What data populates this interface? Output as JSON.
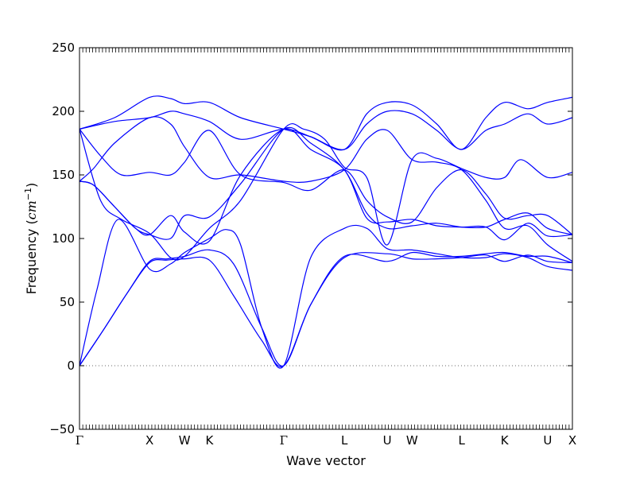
{
  "chart_data": {
    "type": "line",
    "title": "",
    "xlabel": "Wave vector",
    "ylabel_main": "Frequency (",
    "ylabel_unit": "cm",
    "ylabel_sup": "−1",
    "ylabel_close": ")",
    "ylim": [
      -50,
      250
    ],
    "yticks": [
      -50,
      0,
      50,
      100,
      150,
      200,
      250
    ],
    "ytick_labels": [
      "−50",
      "0",
      "50",
      "100",
      "150",
      "200",
      "250"
    ],
    "grid": false,
    "line_color": "#0000ff",
    "zero_line_color": "#6a6a6a",
    "kpoints": [
      {
        "label": "Γ",
        "x": 0.0
      },
      {
        "label": "X",
        "x": 1.0
      },
      {
        "label": "W",
        "x": 1.5
      },
      {
        "label": "K",
        "x": 1.854
      },
      {
        "label": "Γ",
        "x": 2.915
      },
      {
        "label": "L",
        "x": 3.781
      },
      {
        "label": "U",
        "x": 4.393
      },
      {
        "label": "W",
        "x": 4.747
      },
      {
        "label": "L",
        "x": 5.455
      },
      {
        "label": "K",
        "x": 6.068
      },
      {
        "label": "U",
        "x": 6.682
      },
      {
        "label": "X",
        "x": 7.036
      }
    ],
    "series": [
      {
        "x": [
          0.0,
          0.34,
          0.68,
          1.0,
          1.25,
          1.5,
          1.854,
          2.2,
          2.6,
          2.915,
          3.3,
          3.781,
          4.393,
          4.747,
          5.1,
          5.455,
          5.8,
          6.068,
          6.4,
          6.682,
          7.036
        ],
        "y": [
          0,
          28,
          57,
          81,
          83,
          84,
          83,
          55,
          20,
          0,
          48,
          85,
          88,
          84,
          84,
          85,
          87,
          82,
          87,
          82,
          81
        ]
      },
      {
        "x": [
          0.0,
          0.34,
          0.68,
          1.0,
          1.25,
          1.5,
          1.854,
          2.2,
          2.6,
          2.915,
          3.3,
          3.781,
          4.393,
          4.747,
          5.1,
          5.455,
          5.8,
          6.068,
          6.4,
          6.682,
          7.036
        ],
        "y": [
          0,
          28,
          57,
          82,
          84,
          86,
          91,
          80,
          30,
          0,
          48,
          86,
          82,
          89,
          86,
          86,
          88,
          89,
          86,
          86,
          81
        ]
      },
      {
        "x": [
          0.0,
          0.25,
          0.55,
          1.0,
          1.3,
          1.5,
          1.854,
          2.1,
          2.3,
          2.6,
          2.915,
          3.3,
          3.781,
          4.1,
          4.393,
          4.747,
          5.1,
          5.455,
          5.8,
          6.068,
          6.4,
          6.682,
          7.036
        ],
        "y": [
          0,
          60,
          115,
          76,
          80,
          89,
          100,
          107,
          95,
          30,
          0,
          85,
          108,
          108,
          92,
          91,
          88,
          85,
          85,
          88,
          85,
          78,
          75
        ]
      },
      {
        "x": [
          0.0,
          0.2,
          0.5,
          0.8,
          1.0,
          1.3,
          1.5,
          1.854,
          2.3,
          2.915,
          3.3,
          3.781,
          4.1,
          4.393,
          4.747,
          5.1,
          5.455,
          5.8,
          6.068,
          6.4,
          6.682,
          7.036
        ],
        "y": [
          145,
          142,
          125,
          108,
          103,
          118,
          105,
          98,
          150,
          186,
          170,
          154,
          116,
          113,
          115,
          110,
          109,
          109,
          99,
          112,
          102,
          103
        ]
      },
      {
        "x": [
          0.0,
          0.2,
          0.5,
          0.8,
          1.0,
          1.3,
          1.5,
          1.854,
          2.3,
          2.915,
          3.3,
          3.781,
          4.1,
          4.393,
          4.747,
          5.1,
          5.455,
          5.8,
          6.068,
          6.4,
          6.682,
          7.036
        ],
        "y": [
          145,
          142,
          125,
          108,
          103,
          100,
          118,
          117,
          143,
          186,
          175,
          154,
          120,
          108,
          110,
          112,
          109,
          109,
          115,
          120,
          108,
          103
        ]
      },
      {
        "x": [
          0.0,
          0.3,
          0.6,
          1.0,
          1.3,
          1.5,
          1.854,
          2.3,
          2.915,
          3.2,
          3.5,
          3.781,
          4.1,
          4.393,
          4.747,
          5.1,
          5.455,
          5.8,
          6.068,
          6.3,
          6.682,
          7.036
        ],
        "y": [
          186,
          130,
          115,
          104,
          85,
          86,
          108,
          130,
          186,
          186,
          178,
          156,
          148,
          95,
          162,
          163,
          155,
          148,
          148,
          162,
          148,
          152
        ]
      },
      {
        "x": [
          0.0,
          0.3,
          0.6,
          1.0,
          1.3,
          1.5,
          1.854,
          2.3,
          2.915,
          3.3,
          3.781,
          4.1,
          4.393,
          4.747,
          5.1,
          5.455,
          5.8,
          6.068,
          6.4,
          6.682,
          7.036
        ],
        "y": [
          186,
          165,
          150,
          152,
          150,
          160,
          185,
          150,
          144,
          138,
          154,
          130,
          117,
          113,
          140,
          154,
          135,
          116,
          118,
          118,
          103
        ]
      },
      {
        "x": [
          0.0,
          0.2,
          0.5,
          1.0,
          1.3,
          1.5,
          1.854,
          2.3,
          2.915,
          3.3,
          3.781,
          4.1,
          4.393,
          4.747,
          5.1,
          5.455,
          5.8,
          6.068,
          6.4,
          6.682,
          7.036
        ],
        "y": [
          145,
          155,
          175,
          195,
          190,
          172,
          148,
          150,
          145,
          145,
          154,
          178,
          185,
          162,
          160,
          154,
          130,
          108,
          110,
          95,
          82
        ]
      },
      {
        "x": [
          0.0,
          0.5,
          1.0,
          1.3,
          1.5,
          1.854,
          2.3,
          2.915,
          3.3,
          3.781,
          4.1,
          4.393,
          4.747,
          5.1,
          5.455,
          5.8,
          6.068,
          6.4,
          6.682,
          7.036
        ],
        "y": [
          186,
          192,
          195,
          200,
          198,
          192,
          178,
          186,
          180,
          170,
          190,
          200,
          198,
          185,
          170,
          185,
          190,
          198,
          190,
          195
        ]
      },
      {
        "x": [
          0.0,
          0.5,
          1.0,
          1.3,
          1.5,
          1.854,
          2.3,
          2.915,
          3.3,
          3.781,
          4.1,
          4.393,
          4.747,
          5.1,
          5.455,
          5.8,
          6.068,
          6.4,
          6.682,
          7.036
        ],
        "y": [
          186,
          195,
          211,
          210,
          206,
          207,
          195,
          186,
          180,
          170,
          198,
          207,
          205,
          190,
          170,
          195,
          207,
          202,
          207,
          211
        ]
      }
    ]
  }
}
